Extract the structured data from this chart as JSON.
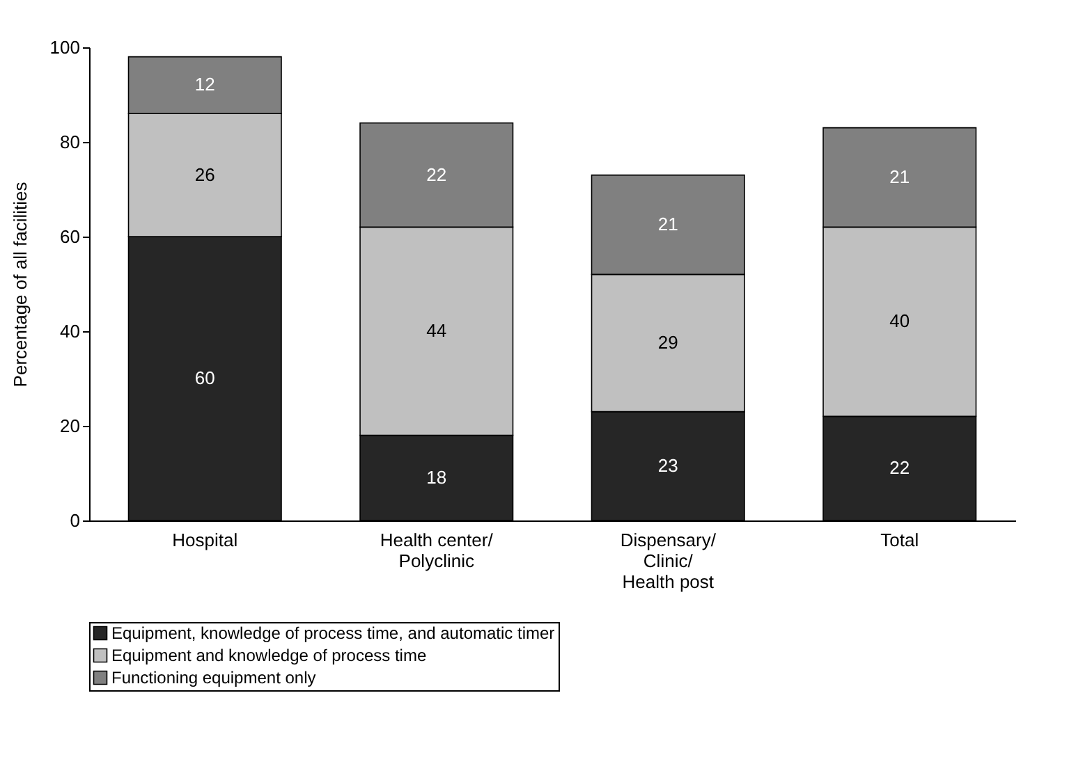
{
  "chart_data": {
    "type": "bar",
    "stacked": true,
    "ylabel": "Percentage of all facilities",
    "categories": [
      "Hospital",
      "Health center/\nPolyclinic",
      "Dispensary/\nClinic/\nHealth post",
      "Total"
    ],
    "series": [
      {
        "name": "Equipment, knowledge of process time, and automatic timer",
        "color": "#262626",
        "values": [
          60,
          18,
          23,
          22
        ]
      },
      {
        "name": "Equipment and knowledge of process time",
        "color": "#c0c0c0",
        "values": [
          26,
          44,
          29,
          40
        ]
      },
      {
        "name": "Functioning equipment only",
        "color": "#808080",
        "values": [
          12,
          22,
          21,
          21
        ]
      }
    ],
    "ylim": [
      0,
      100
    ],
    "yticks": [
      0,
      20,
      40,
      60,
      80,
      100
    ],
    "grid": false,
    "legend": "bottom",
    "data_labels": true
  }
}
